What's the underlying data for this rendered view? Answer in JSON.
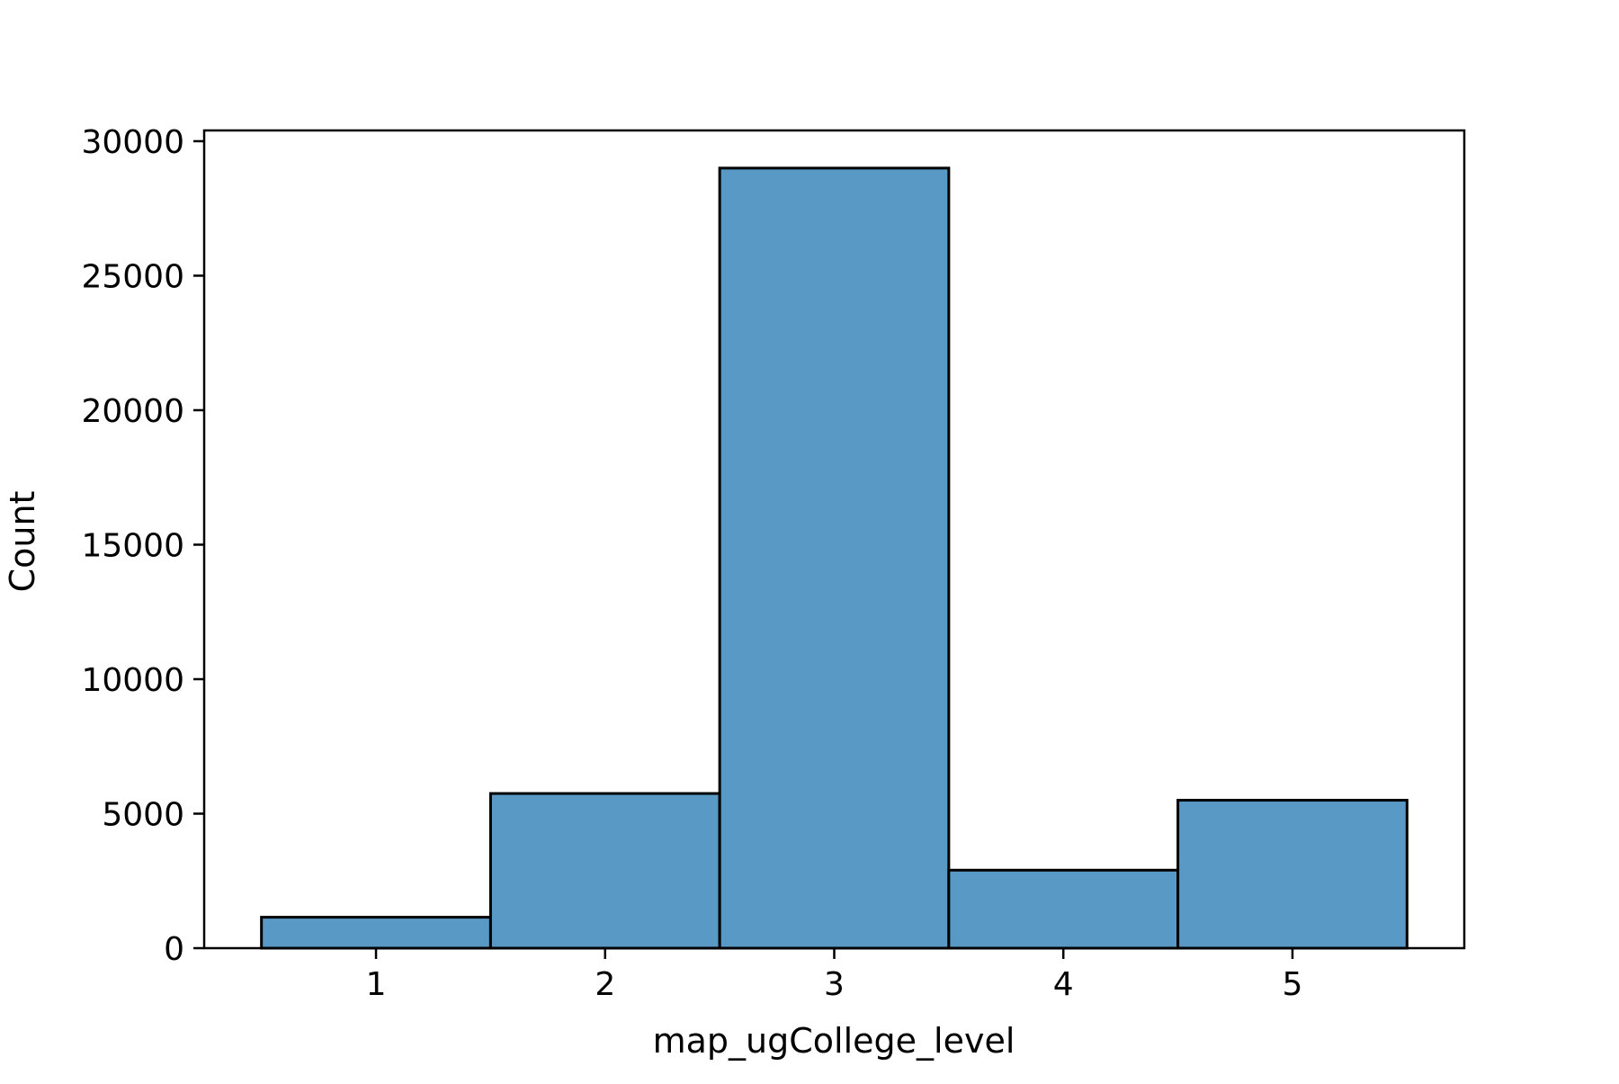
{
  "chart_data": {
    "type": "bar",
    "subtype": "histogram",
    "categories": [
      "1",
      "2",
      "3",
      "4",
      "5"
    ],
    "x": [
      1,
      2,
      3,
      4,
      5
    ],
    "values": [
      1150,
      5750,
      29000,
      2900,
      5500
    ],
    "xlabel": "map_ugCollege_level",
    "ylabel": "Count",
    "xlim": [
      0.25,
      5.75
    ],
    "ylim": [
      0,
      30400
    ],
    "yticks": [
      0,
      5000,
      10000,
      15000,
      20000,
      25000,
      30000
    ],
    "ytick_labels": [
      "0",
      "5000",
      "10000",
      "15000",
      "20000",
      "25000",
      "30000"
    ],
    "xticks": [
      1,
      2,
      3,
      4,
      5
    ],
    "xtick_labels": [
      "1",
      "2",
      "3",
      "4",
      "5"
    ],
    "grid": false,
    "legend": false,
    "colors": {
      "bar_fill": "#5899c6",
      "bar_edge": "#000000",
      "axis": "#000000",
      "background": "#ffffff"
    }
  }
}
